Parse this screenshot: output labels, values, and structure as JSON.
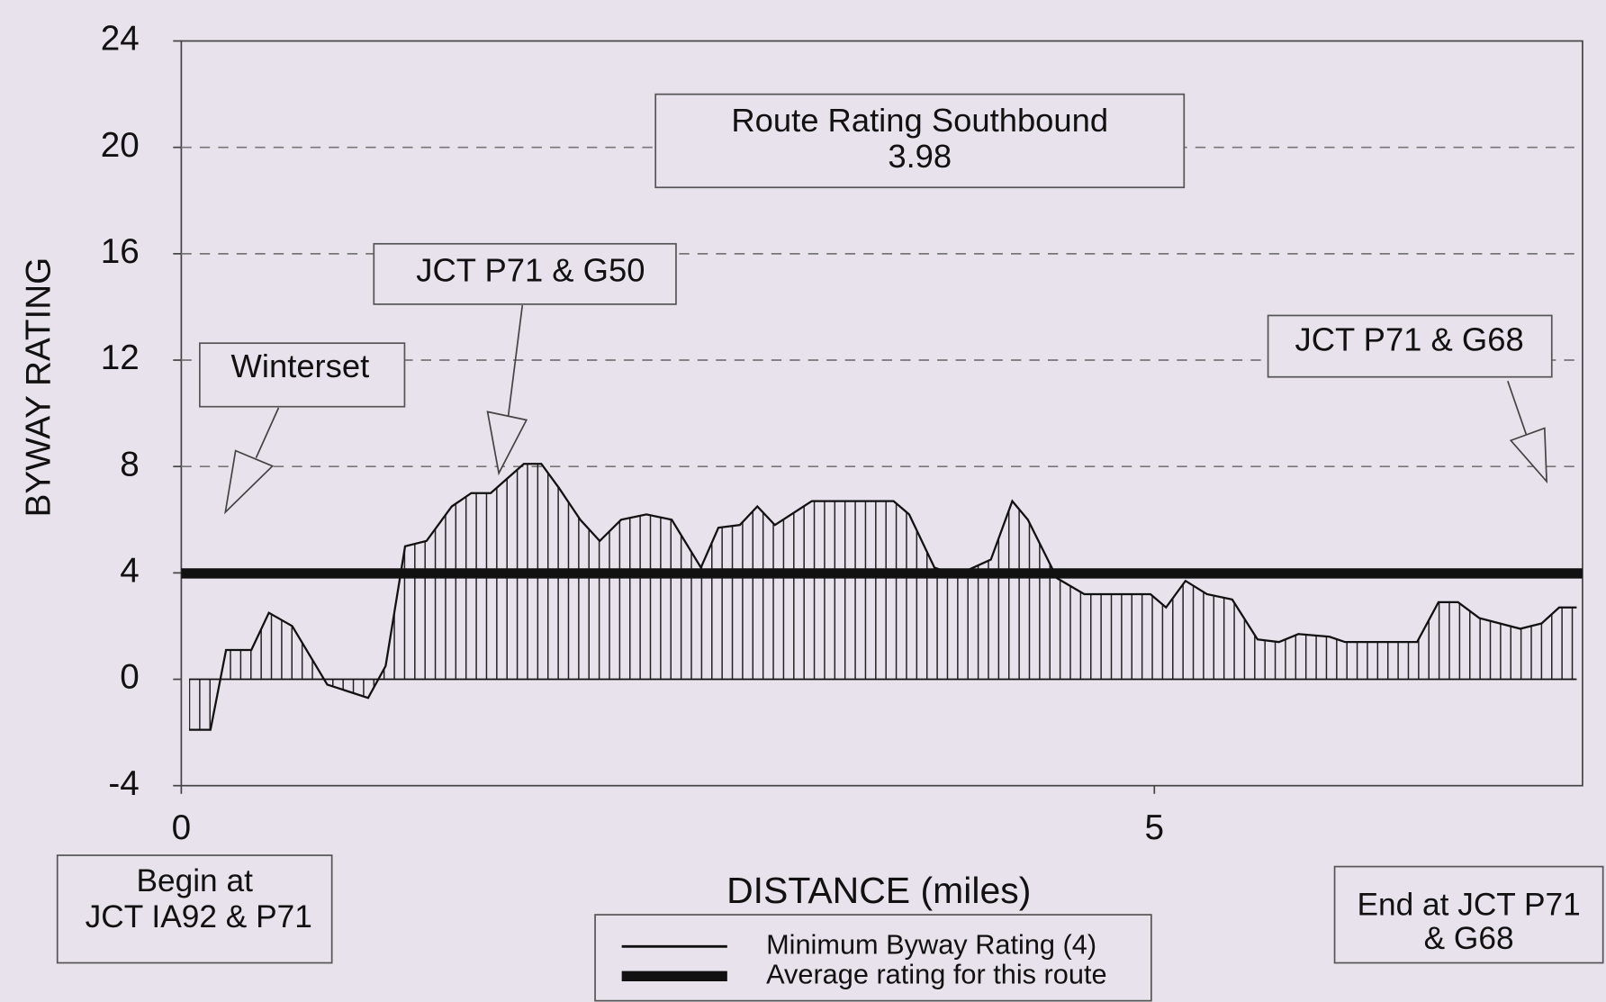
{
  "chart_data": {
    "type": "area",
    "y_label": "BYWAY RATING",
    "x_label": "DISTANCE (miles)",
    "x": [
      0.04,
      0.15,
      0.23,
      0.36,
      0.45,
      0.57,
      0.75,
      0.96,
      1.05,
      1.15,
      1.26,
      1.39,
      1.49,
      1.59,
      1.76,
      1.85,
      1.94,
      2.05,
      2.15,
      2.26,
      2.39,
      2.52,
      2.67,
      2.76,
      2.87,
      2.96,
      3.05,
      3.24,
      3.66,
      3.74,
      3.87,
      3.98,
      4.16,
      4.27,
      4.35,
      4.5,
      4.64,
      4.98,
      5.06,
      5.16,
      5.27,
      5.4,
      5.53,
      5.64,
      5.74,
      5.9,
      5.98,
      6.35,
      6.46,
      6.56,
      6.67,
      6.88,
      6.99,
      7.08,
      7.17
    ],
    "series": [
      {
        "color": "#111111",
        "values": [
          -1.9,
          -1.9,
          1.1,
          1.1,
          2.5,
          2.0,
          -0.2,
          -0.7,
          0.5,
          5.0,
          5.2,
          6.5,
          7.0,
          7.0,
          8.1,
          8.1,
          7.2,
          6.0,
          5.2,
          6.0,
          6.2,
          6.0,
          4.2,
          5.7,
          5.8,
          6.5,
          5.8,
          6.7,
          6.7,
          6.2,
          4.2,
          3.9,
          4.5,
          6.7,
          6.0,
          3.8,
          3.2,
          3.2,
          2.7,
          3.7,
          3.2,
          3.0,
          1.5,
          1.4,
          1.7,
          1.6,
          1.4,
          1.4,
          2.9,
          2.9,
          2.3,
          1.9,
          2.1,
          2.7,
          2.7
        ]
      }
    ],
    "xlim": [
      0,
      7.2
    ],
    "xticks": [
      0,
      5
    ],
    "ylim": [
      -4,
      24
    ],
    "yticks": [
      -4,
      0,
      4,
      8,
      12,
      16,
      20,
      24
    ],
    "grid_lines": [
      8,
      12,
      16,
      20
    ],
    "reference_lines": [
      {
        "name": "Minimum Byway Rating (4)",
        "value": 4,
        "color": "#111111"
      },
      {
        "name": "Average rating for this route",
        "value": 3.98,
        "color": "#111111"
      }
    ],
    "route_rating_label": "Route Rating Southbound",
    "annotations": [
      "Winterset",
      "JCT P71 & G50",
      "JCT P71 & G68"
    ],
    "begin_label": [
      "Begin at",
      "JCT IA92 & P71"
    ],
    "end_label": [
      "End at JCT P71",
      "& G68"
    ]
  }
}
